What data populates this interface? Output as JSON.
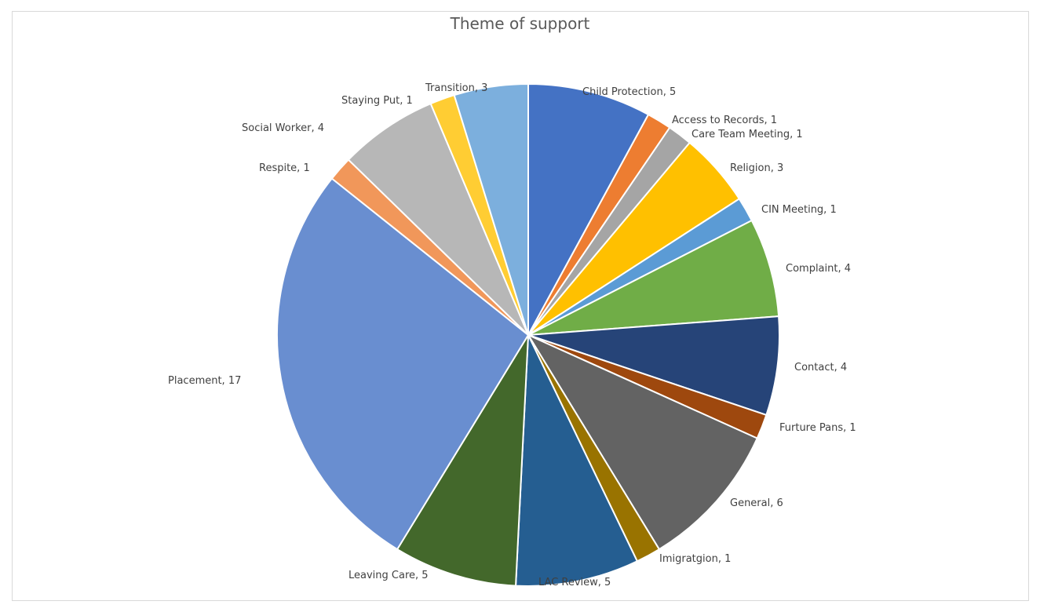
{
  "chart_data": {
    "type": "pie",
    "title": "Theme of support",
    "data_labels": "category, value",
    "slices": [
      {
        "label": "Child Protection",
        "value": 5,
        "color": "#4472C4",
        "display": "Child Protection, 5"
      },
      {
        "label": "Access to Records",
        "value": 1,
        "color": "#ED7D31",
        "display": "Access to Records, 1"
      },
      {
        "label": "Care Team Meeting",
        "value": 1,
        "color": "#A5A5A5",
        "display": "Care Team Meeting, 1"
      },
      {
        "label": "Religion",
        "value": 3,
        "color": "#FFC000",
        "display": "Religion, 3"
      },
      {
        "label": "CIN Meeting",
        "value": 1,
        "color": "#5B9BD5",
        "display": "CIN Meeting, 1"
      },
      {
        "label": "Complaint",
        "value": 4,
        "color": "#70AD47",
        "display": "Complaint, 4"
      },
      {
        "label": "Contact",
        "value": 4,
        "color": "#264478",
        "display": "Contact, 4"
      },
      {
        "label": "Furture Pans",
        "value": 1,
        "color": "#9E480E",
        "display": "Furture Pans, 1"
      },
      {
        "label": "General",
        "value": 6,
        "color": "#636363",
        "display": "General, 6"
      },
      {
        "label": "Imigratgion",
        "value": 1,
        "color": "#997300",
        "display": "Imigratgion, 1"
      },
      {
        "label": "LAC  Review",
        "value": 5,
        "color": "#255E91",
        "display": "LAC  Review, 5"
      },
      {
        "label": "Leaving Care",
        "value": 5,
        "color": "#43682B",
        "display": "Leaving Care, 5"
      },
      {
        "label": "Placement",
        "value": 17,
        "color": "#698ED0",
        "display": "Placement, 17"
      },
      {
        "label": "Respite",
        "value": 1,
        "color": "#F1975A",
        "display": "Respite, 1"
      },
      {
        "label": "Social Worker",
        "value": 4,
        "color": "#B7B7B7",
        "display": "Social Worker, 4"
      },
      {
        "label": "Staying Put",
        "value": 1,
        "color": "#FFCD33",
        "display": "Staying Put, 1"
      },
      {
        "label": "Transition",
        "value": 3,
        "color": "#7CAFDD",
        "display": "Transition, 3"
      }
    ],
    "legend": "none",
    "start_angle": "12 o'clock, clockwise"
  }
}
